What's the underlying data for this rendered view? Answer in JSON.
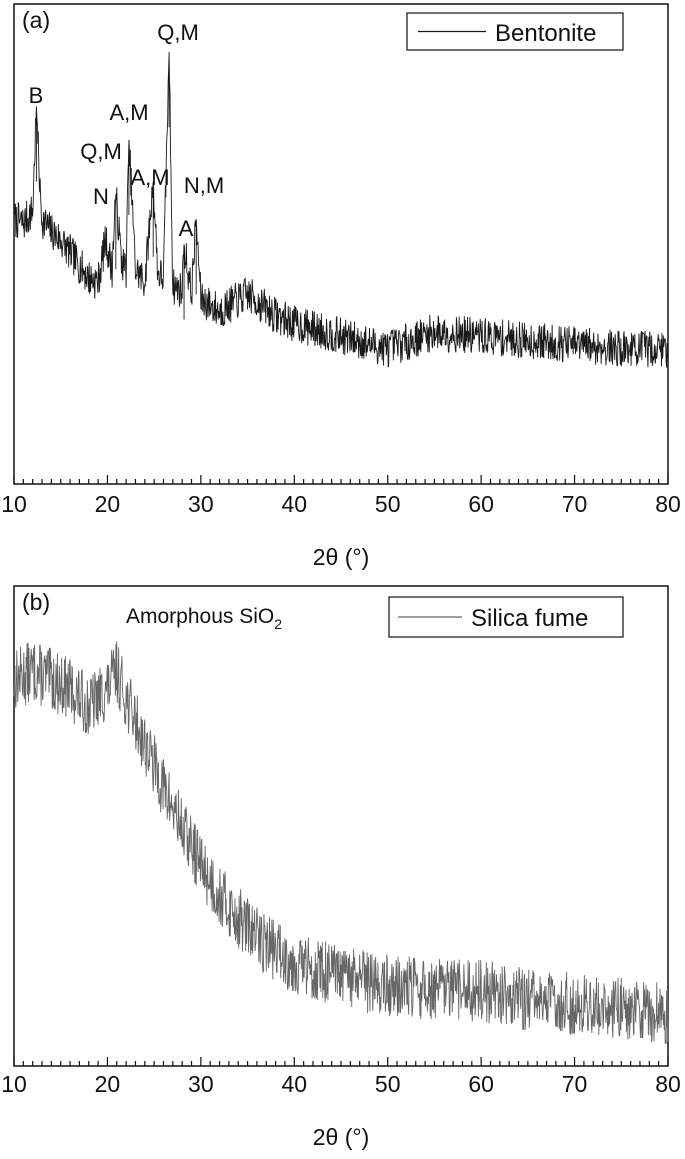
{
  "chart_data": [
    {
      "type": "line",
      "panel_label": "(a)",
      "xlabel": "2θ (°)",
      "ylabel": "",
      "xlim": [
        10,
        80
      ],
      "xticks": [
        "10",
        "20",
        "30",
        "40",
        "50",
        "60",
        "70",
        "80"
      ],
      "legend": {
        "entries": [
          "Bentonite"
        ],
        "position": "top-right"
      },
      "color": "#1a1a1a",
      "series": [
        {
          "name": "Bentonite",
          "x": [
            10,
            11,
            12,
            12.4,
            12.8,
            13,
            14,
            15,
            16,
            17,
            18,
            19,
            19.8,
            20.5,
            20.9,
            21.5,
            22,
            22.3,
            23,
            24,
            24.9,
            25.4,
            26,
            26.6,
            27,
            28,
            28.2,
            29,
            29.5,
            30,
            32,
            35,
            38,
            40,
            45,
            50,
            55,
            60,
            65,
            70,
            75,
            80
          ],
          "y": [
            0.6,
            0.59,
            0.62,
            0.87,
            0.66,
            0.6,
            0.57,
            0.55,
            0.52,
            0.49,
            0.46,
            0.45,
            0.55,
            0.48,
            0.66,
            0.5,
            0.48,
            0.79,
            0.48,
            0.45,
            0.69,
            0.47,
            0.46,
            1.0,
            0.44,
            0.43,
            0.54,
            0.42,
            0.6,
            0.41,
            0.38,
            0.42,
            0.37,
            0.35,
            0.32,
            0.29,
            0.33,
            0.32,
            0.31,
            0.3,
            0.29,
            0.29
          ]
        }
      ],
      "annotations": [
        {
          "text": "B",
          "x": 12.4
        },
        {
          "text": "Q,M",
          "x": 19.8
        },
        {
          "text": "N",
          "x": 19.3
        },
        {
          "text": "A,M",
          "x": 22.1
        },
        {
          "text": "A,M",
          "x": 25.0
        },
        {
          "text": "Q,M",
          "x": 26.6
        },
        {
          "text": "N,M",
          "x": 29.2
        },
        {
          "text": "A",
          "x": 28.2
        }
      ]
    },
    {
      "type": "line",
      "panel_label": "(b)",
      "xlabel": "2θ (°)",
      "ylabel": "",
      "xlim": [
        10,
        80
      ],
      "xticks": [
        "10",
        "20",
        "30",
        "40",
        "50",
        "60",
        "70",
        "80"
      ],
      "legend": {
        "entries": [
          "Silica fume"
        ],
        "position": "top-right"
      },
      "color": "#666666",
      "series": [
        {
          "name": "Silica fume",
          "x": [
            10,
            12,
            14,
            16,
            18,
            20,
            21,
            22,
            24,
            26,
            28,
            30,
            32,
            34,
            36,
            38,
            40,
            45,
            50,
            55,
            60,
            65,
            70,
            75,
            80
          ],
          "y": [
            0.8,
            0.82,
            0.8,
            0.78,
            0.74,
            0.78,
            0.82,
            0.76,
            0.66,
            0.56,
            0.47,
            0.39,
            0.32,
            0.27,
            0.23,
            0.2,
            0.17,
            0.14,
            0.12,
            0.11,
            0.11,
            0.09,
            0.08,
            0.07,
            0.06
          ]
        }
      ],
      "annotations": [
        {
          "text": "Amorphous SiO",
          "subscript": "2",
          "x": 21.5
        }
      ]
    }
  ]
}
